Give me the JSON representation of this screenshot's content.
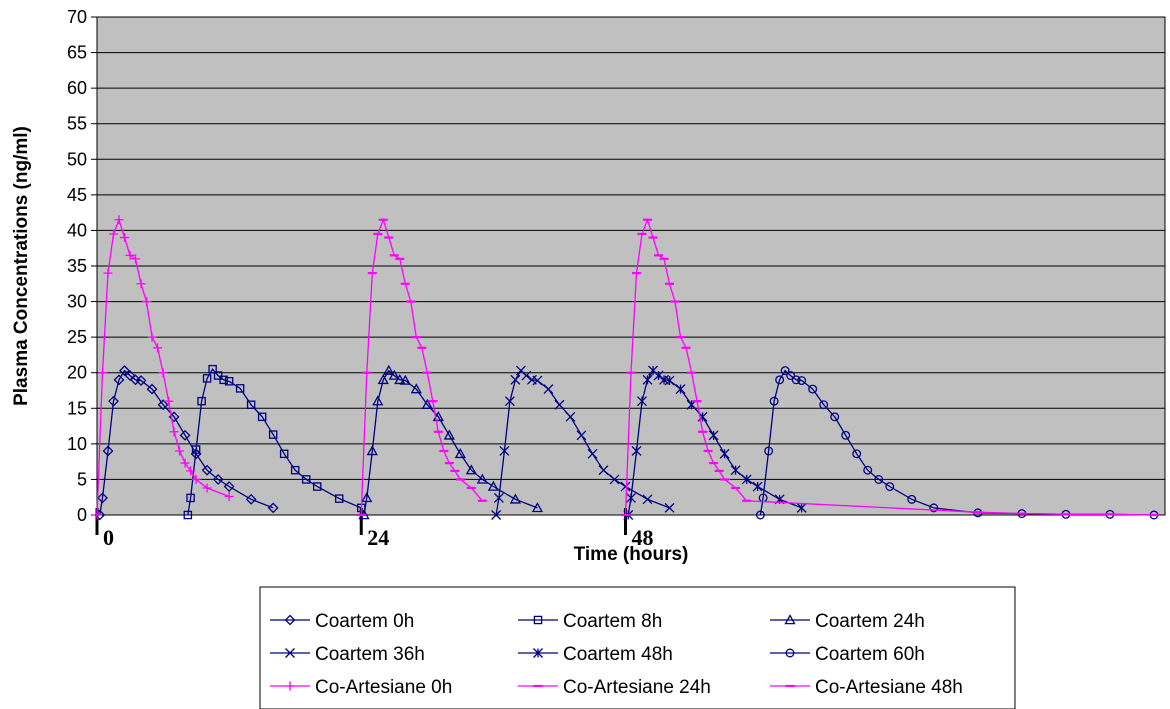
{
  "chart_data": {
    "type": "line",
    "title": "",
    "xlabel": "Time (hours)",
    "ylabel": "Plasma Concentrations (ng/ml)",
    "ylim": [
      0,
      70
    ],
    "yticks": [
      0,
      5,
      10,
      15,
      20,
      25,
      30,
      35,
      40,
      45,
      50,
      55,
      60,
      65,
      70
    ],
    "xlim": [
      0,
      97
    ],
    "x_labels": [
      {
        "x": 0,
        "label": "0"
      },
      {
        "x": 24,
        "label": "24"
      },
      {
        "x": 48,
        "label": "48"
      }
    ],
    "grid": true,
    "legend_position": "bottom",
    "colors": {
      "coartem": "#000080",
      "coartesiane": "#FF00FF",
      "plot_bg": "#C0C0C0"
    },
    "series": [
      {
        "name": "Coartem 0h",
        "marker": "diamond",
        "color": "#000080",
        "x": [
          0.25,
          0.5,
          1,
          1.5,
          2,
          2.5,
          3,
          3.5,
          4,
          5,
          6,
          7,
          8,
          9,
          10,
          11,
          12,
          14,
          16
        ],
        "y": [
          0,
          2.4,
          9,
          16,
          19,
          20.3,
          19.6,
          19,
          18.9,
          17.7,
          15.5,
          13.8,
          11.2,
          8.6,
          6.3,
          5,
          4,
          2.2,
          1
        ]
      },
      {
        "name": "Coartem 8h",
        "marker": "square",
        "color": "#000080",
        "x": [
          8.25,
          8.5,
          9,
          9.5,
          10,
          10.5,
          11,
          11.5,
          12,
          13,
          14,
          15,
          16,
          17,
          18,
          19,
          20,
          22,
          24
        ],
        "y": [
          0,
          2.4,
          9.2,
          16,
          19.2,
          20.5,
          19.6,
          19,
          18.8,
          17.8,
          15.5,
          13.8,
          11.3,
          8.6,
          6.3,
          5,
          4,
          2.3,
          1
        ]
      },
      {
        "name": "Coartem 24h",
        "marker": "triangle",
        "color": "#000080",
        "x": [
          24.25,
          24.5,
          25,
          25.5,
          26,
          26.5,
          27,
          27.5,
          28,
          29,
          30,
          31,
          32,
          33,
          34,
          35,
          36,
          38,
          40
        ],
        "y": [
          0,
          2.4,
          9,
          16,
          19,
          20.3,
          19.6,
          19,
          18.9,
          17.7,
          15.5,
          13.8,
          11.2,
          8.6,
          6.3,
          5,
          4,
          2.2,
          1
        ]
      },
      {
        "name": "Coartem 36h",
        "marker": "x",
        "color": "#000080",
        "x": [
          36.25,
          36.5,
          37,
          37.5,
          38,
          38.5,
          39,
          39.5,
          40,
          41,
          42,
          43,
          44,
          45,
          46,
          47,
          48,
          50,
          52
        ],
        "y": [
          0,
          2.4,
          9,
          16,
          19,
          20.3,
          19.6,
          19,
          18.9,
          17.7,
          15.5,
          13.8,
          11.2,
          8.6,
          6.3,
          5,
          4,
          2.2,
          1
        ]
      },
      {
        "name": "Coartem 48h",
        "marker": "star",
        "color": "#000080",
        "x": [
          48.25,
          48.5,
          49,
          49.5,
          50,
          50.5,
          51,
          51.5,
          52,
          53,
          54,
          55,
          56,
          57,
          58,
          59,
          60,
          62,
          64
        ],
        "y": [
          0,
          2.4,
          9,
          16,
          19,
          20.3,
          19.6,
          19,
          18.9,
          17.7,
          15.5,
          13.8,
          11.2,
          8.6,
          6.3,
          5,
          4,
          2.2,
          1
        ]
      },
      {
        "name": "Coartem 60h",
        "marker": "circle",
        "color": "#000080",
        "x": [
          60.25,
          60.5,
          61,
          61.5,
          62,
          62.5,
          63,
          63.5,
          64,
          65,
          66,
          67,
          68,
          69,
          70,
          71,
          72,
          74,
          76,
          80,
          84,
          88,
          92,
          96
        ],
        "y": [
          0,
          2.4,
          9,
          16,
          19,
          20.3,
          19.6,
          19,
          18.9,
          17.7,
          15.5,
          13.8,
          11.2,
          8.6,
          6.3,
          5,
          4,
          2.2,
          1,
          0.3,
          0.2,
          0.1,
          0.1,
          0
        ]
      },
      {
        "name": "Co-Artesiane 0h",
        "marker": "plus",
        "color": "#FF00FF",
        "x": [
          0,
          0.5,
          1,
          1.5,
          2,
          2.5,
          3,
          3.5,
          4,
          4.5,
          5,
          5.5,
          6,
          6.5,
          7,
          7.5,
          8,
          8.5,
          9,
          10,
          12
        ],
        "y": [
          0,
          20,
          34,
          39.5,
          41.5,
          39,
          36.5,
          36,
          32.5,
          30,
          25,
          23.5,
          20,
          16,
          11.7,
          9,
          7.3,
          6.2,
          5,
          3.8,
          2.6
        ]
      },
      {
        "name": "Co-Artesiane 24h",
        "marker": "dash",
        "color": "#FF00FF",
        "x": [
          24,
          24.5,
          25,
          25.5,
          26,
          26.5,
          27,
          27.5,
          28,
          28.5,
          29,
          29.5,
          30,
          30.5,
          31,
          31.5,
          32,
          32.5,
          33,
          34,
          35
        ],
        "y": [
          0,
          20,
          34,
          39.5,
          41.5,
          39,
          36.5,
          36,
          32.5,
          30,
          25,
          23.5,
          20,
          16,
          11.7,
          9,
          7.3,
          6.2,
          5,
          3.8,
          2
        ]
      },
      {
        "name": "Co-Artesiane 48h",
        "marker": "dash",
        "color": "#FF00FF",
        "x": [
          48,
          48.5,
          49,
          49.5,
          50,
          50.5,
          51,
          51.5,
          52,
          52.5,
          53,
          53.5,
          54,
          54.5,
          55,
          55.5,
          56,
          56.5,
          57,
          58,
          59,
          80,
          84,
          88,
          92,
          96
        ],
        "y": [
          0,
          20,
          34,
          39.5,
          41.5,
          39,
          36.5,
          36,
          32.5,
          30,
          25,
          23.5,
          20,
          16,
          11.7,
          9,
          7.3,
          6.2,
          5,
          3.8,
          2,
          0.4,
          0.2,
          0.1,
          0.1,
          0
        ]
      }
    ]
  }
}
